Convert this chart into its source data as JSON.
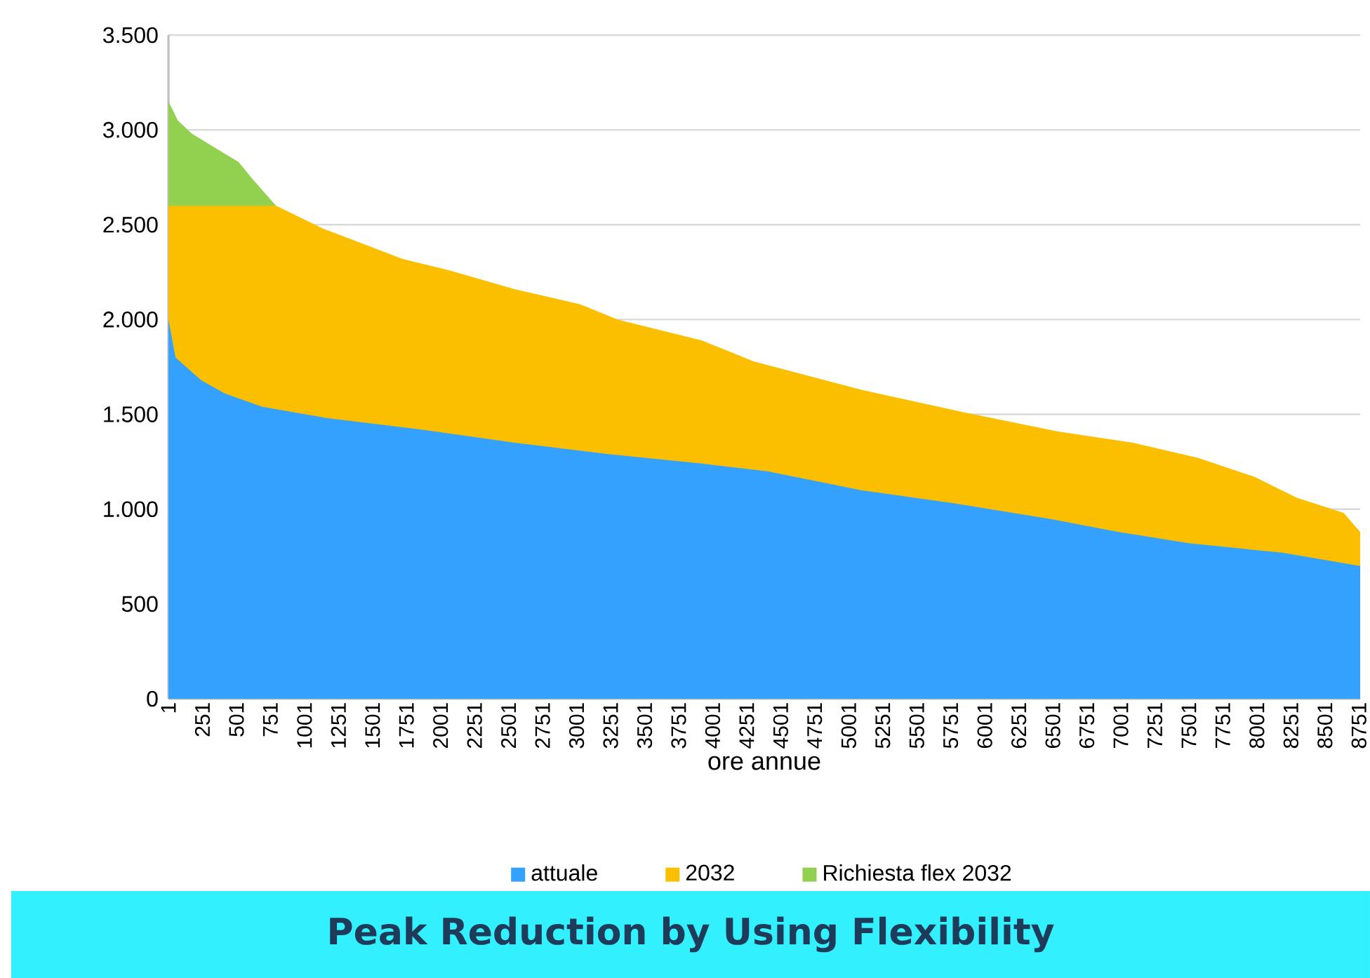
{
  "chart_data": {
    "type": "area",
    "title": "Peak Reduction by Using Flexibility",
    "xlabel": "ore annue",
    "xlim": [
      1,
      8760
    ],
    "xticks": [
      1,
      251,
      501,
      751,
      1001,
      1251,
      1501,
      1751,
      2001,
      2251,
      2501,
      2751,
      3001,
      3251,
      3501,
      3751,
      4001,
      4251,
      4501,
      4751,
      5001,
      5251,
      5501,
      5751,
      6001,
      6251,
      6501,
      6751,
      7001,
      7251,
      7501,
      7751,
      8001,
      8251,
      8501,
      8751
    ],
    "ylim": [
      0,
      3500
    ],
    "yticks": [
      {
        "value": 0,
        "label": "0"
      },
      {
        "value": 500,
        "label": "500"
      },
      {
        "value": 1000,
        "label": "1.000"
      },
      {
        "value": 1500,
        "label": "1.500"
      },
      {
        "value": 2000,
        "label": "2.000"
      },
      {
        "value": 2500,
        "label": "2.500"
      },
      {
        "value": 3000,
        "label": "3.000"
      },
      {
        "value": 3500,
        "label": "3.500"
      }
    ],
    "grid": "y",
    "legend": "bottom",
    "series": [
      {
        "name": "attuale",
        "color": "#33a1fd",
        "x": [
          1,
          53,
          241,
          414,
          689,
          1170,
          1858,
          2546,
          3234,
          3921,
          4403,
          5092,
          5779,
          6468,
          6984,
          7500,
          8188,
          8760
        ],
        "values": [
          2000,
          1800,
          1680,
          1610,
          1540,
          1480,
          1420,
          1350,
          1290,
          1240,
          1200,
          1100,
          1030,
          950,
          880,
          820,
          770,
          700
        ]
      },
      {
        "name": "2032",
        "color": "#fcbf00",
        "x": [
          1,
          792,
          1136,
          1720,
          2064,
          2546,
          3027,
          3302,
          3921,
          4300,
          5092,
          5849,
          6538,
          7089,
          7570,
          7984,
          8294,
          8638,
          8760
        ],
        "values": [
          2600,
          2600,
          2480,
          2320,
          2260,
          2160,
          2080,
          2000,
          1890,
          1780,
          1630,
          1510,
          1410,
          1350,
          1270,
          1170,
          1060,
          980,
          880
        ]
      },
      {
        "name": "Richiesta flex 2032",
        "color": "#92d050",
        "x": [
          1,
          70,
          173,
          310,
          517,
          620,
          792
        ],
        "values": [
          3150,
          3050,
          2980,
          2920,
          2830,
          2740,
          2600
        ]
      }
    ]
  }
}
